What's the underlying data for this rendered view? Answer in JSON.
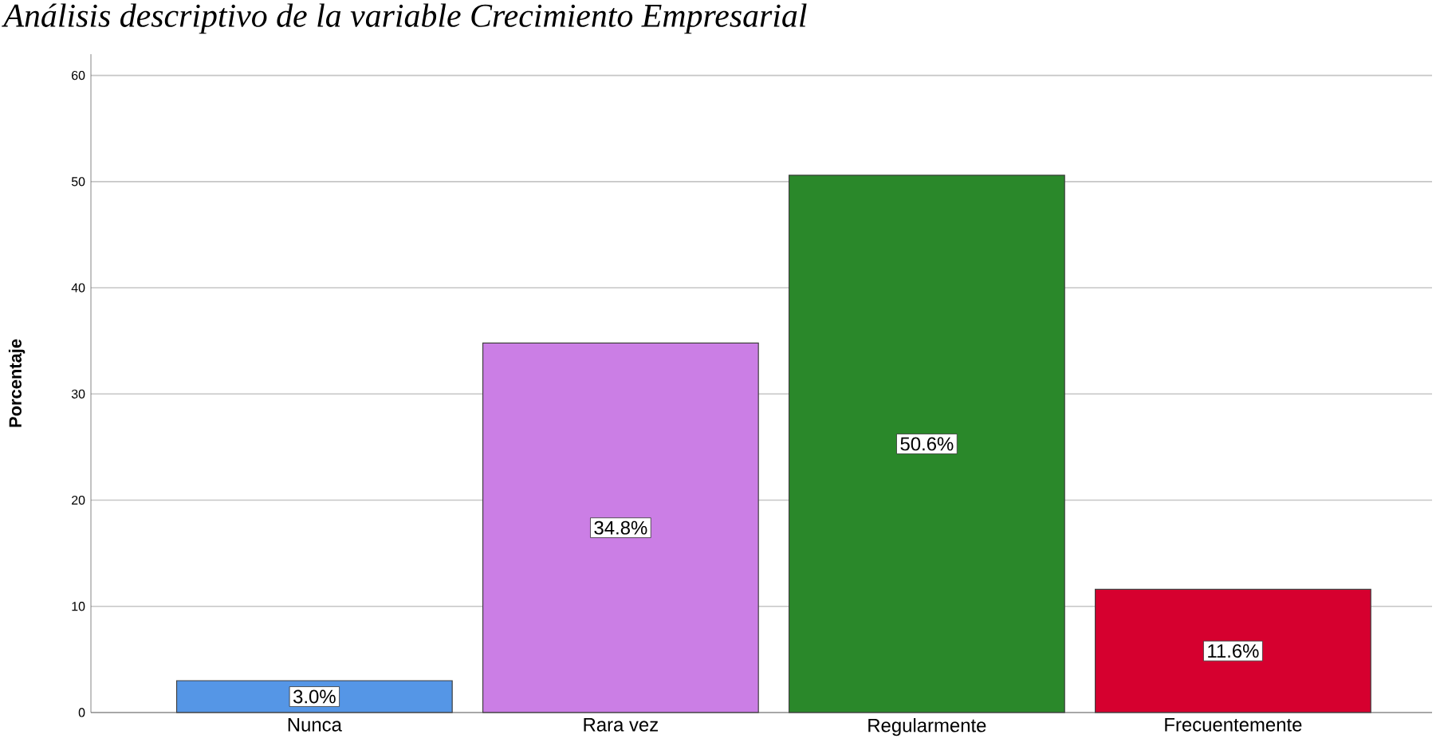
{
  "chart_data": {
    "type": "bar",
    "title": "Análisis descriptivo de la variable Crecimiento Empresarial",
    "ylabel": "Porcentaje",
    "categories": [
      "Nunca",
      "Rara vez",
      "Regularmente",
      "Frecuentemente"
    ],
    "values": [
      3.0,
      34.8,
      50.6,
      11.6
    ],
    "value_labels": [
      "3.0%",
      "34.8%",
      "50.6%",
      "11.6%"
    ],
    "colors": [
      "#5596e6",
      "#cb7ee5",
      "#2a882a",
      "#d6002f"
    ],
    "ylim": [
      0,
      62
    ],
    "yticks": [
      0,
      10,
      20,
      30,
      40,
      50,
      60
    ],
    "grid": "y"
  }
}
